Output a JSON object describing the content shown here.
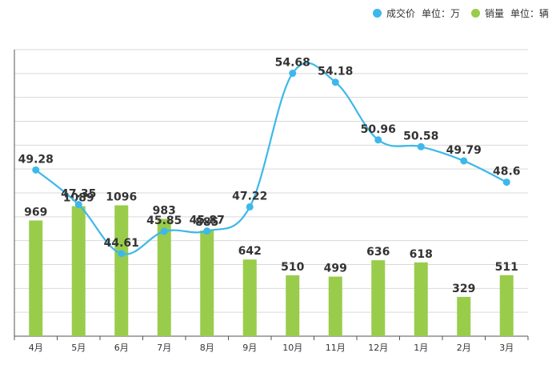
{
  "legend": {
    "price": {
      "name": "成交价",
      "unit": "单位：万"
    },
    "volume": {
      "name": "销量",
      "unit": "单位：辆"
    }
  },
  "colors": {
    "price_line": "#3db8ea",
    "volume_bar": "#99cc4b",
    "grid": "#d9d9d9",
    "axis": "#555555"
  },
  "chart_data": {
    "type": "bar",
    "categories": [
      "4月",
      "5月",
      "6月",
      "7月",
      "8月",
      "9月",
      "10月",
      "11月",
      "12月",
      "1月",
      "2月",
      "3月"
    ],
    "series": [
      {
        "name": "成交价",
        "type": "line",
        "unit": "单位：万",
        "values": [
          49.28,
          47.35,
          44.61,
          45.85,
          45.87,
          47.22,
          54.68,
          54.18,
          50.96,
          50.58,
          49.79,
          48.6
        ],
        "labels": [
          "49.28",
          "47.35",
          "44.61",
          "45.85",
          "45.87",
          "47.22",
          "54.68",
          "54.18",
          "50.96",
          "50.58",
          "49.79",
          "48.6"
        ]
      },
      {
        "name": "销量",
        "type": "bar",
        "unit": "单位：辆",
        "values": [
          969,
          1089,
          1096,
          983,
          885,
          642,
          510,
          499,
          636,
          618,
          329,
          511
        ],
        "labels": [
          "969",
          "1089",
          "1096",
          "983",
          "885",
          "642",
          "510",
          "499",
          "636",
          "618",
          "329",
          "511"
        ]
      }
    ],
    "ylim_price": [
      40,
      56
    ],
    "ylim_volume": [
      0,
      2400
    ],
    "grid": true,
    "legend_position": "top-right"
  }
}
